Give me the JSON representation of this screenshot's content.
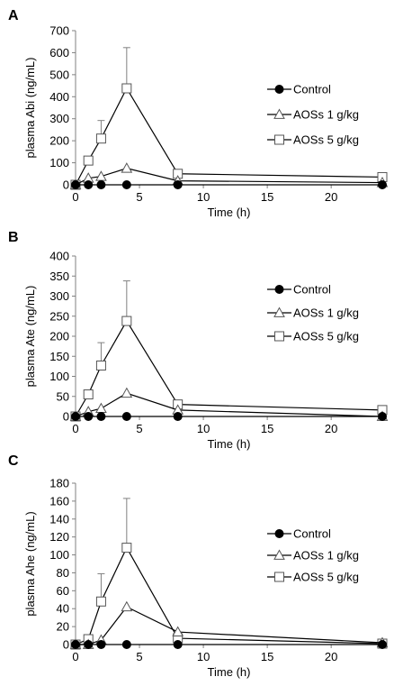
{
  "chart_data": [
    {
      "type": "line",
      "panel_label": "A",
      "xlabel": "Time (h)",
      "ylabel": "plasma Abi (ng/mL)",
      "xlim": [
        0,
        24
      ],
      "ylim": [
        0,
        700
      ],
      "xticks": [
        0,
        5,
        10,
        15,
        20
      ],
      "yticks": [
        0,
        100,
        200,
        300,
        400,
        500,
        600,
        700
      ],
      "legend_position": "right",
      "series": [
        {
          "name": "Control",
          "marker": "filled-circle",
          "x": [
            0,
            1,
            2,
            4,
            8,
            24
          ],
          "y": [
            0,
            0,
            0,
            0,
            0,
            0
          ],
          "err": [
            0,
            0,
            0,
            0,
            0,
            0
          ]
        },
        {
          "name": "AOSs 1 g/kg",
          "marker": "open-triangle",
          "x": [
            0,
            1,
            2,
            4,
            8,
            24
          ],
          "y": [
            0,
            30,
            38,
            75,
            18,
            10
          ],
          "err": [
            0,
            0,
            0,
            0,
            0,
            0
          ]
        },
        {
          "name": "AOSs 5 g/kg",
          "marker": "open-square",
          "x": [
            0,
            1,
            2,
            4,
            8,
            24
          ],
          "y": [
            0,
            110,
            210,
            438,
            50,
            35
          ],
          "err": [
            0,
            0,
            82,
            185,
            0,
            0
          ]
        }
      ]
    },
    {
      "type": "line",
      "panel_label": "B",
      "xlabel": "Time (h)",
      "ylabel": "plasma Ate (ng/mL)",
      "xlim": [
        0,
        24
      ],
      "ylim": [
        0,
        400
      ],
      "xticks": [
        0,
        5,
        10,
        15,
        20
      ],
      "yticks": [
        0,
        50,
        100,
        150,
        200,
        250,
        300,
        350,
        400
      ],
      "legend_position": "right",
      "series": [
        {
          "name": "Control",
          "marker": "filled-circle",
          "x": [
            0,
            1,
            2,
            4,
            8,
            24
          ],
          "y": [
            0,
            0,
            0,
            0,
            0,
            0
          ],
          "err": [
            0,
            0,
            0,
            0,
            0,
            0
          ]
        },
        {
          "name": "AOSs 1 g/kg",
          "marker": "open-triangle",
          "x": [
            0,
            1,
            2,
            4,
            8,
            24
          ],
          "y": [
            0,
            12,
            20,
            58,
            16,
            0
          ],
          "err": [
            0,
            0,
            0,
            0,
            0,
            0
          ]
        },
        {
          "name": "AOSs 5 g/kg",
          "marker": "open-square",
          "x": [
            0,
            1,
            2,
            4,
            8,
            24
          ],
          "y": [
            0,
            55,
            127,
            238,
            30,
            16
          ],
          "err": [
            0,
            0,
            57,
            100,
            0,
            0
          ]
        }
      ]
    },
    {
      "type": "line",
      "panel_label": "C",
      "xlabel": "Time (h)",
      "ylabel": "plasma Ahe (ng/mL)",
      "xlim": [
        0,
        24
      ],
      "ylim": [
        0,
        180
      ],
      "xticks": [
        0,
        5,
        10,
        15,
        20
      ],
      "yticks": [
        0,
        20,
        40,
        60,
        80,
        100,
        120,
        140,
        160,
        180
      ],
      "legend_position": "right",
      "series": [
        {
          "name": "Control",
          "marker": "filled-circle",
          "x": [
            0,
            1,
            2,
            4,
            8,
            24
          ],
          "y": [
            0,
            0,
            0,
            0,
            0,
            0
          ],
          "err": [
            0,
            0,
            0,
            0,
            0,
            0
          ]
        },
        {
          "name": "AOSs 1 g/kg",
          "marker": "open-triangle",
          "x": [
            0,
            1,
            2,
            4,
            8,
            24
          ],
          "y": [
            0,
            0,
            5,
            42,
            14,
            2
          ],
          "err": [
            0,
            0,
            0,
            0,
            0,
            0
          ]
        },
        {
          "name": "AOSs 5 g/kg",
          "marker": "open-square",
          "x": [
            0,
            1,
            2,
            4,
            8,
            24
          ],
          "y": [
            0,
            6,
            48,
            108,
            7,
            1
          ],
          "err": [
            0,
            0,
            31,
            55,
            0,
            0
          ]
        }
      ]
    }
  ]
}
